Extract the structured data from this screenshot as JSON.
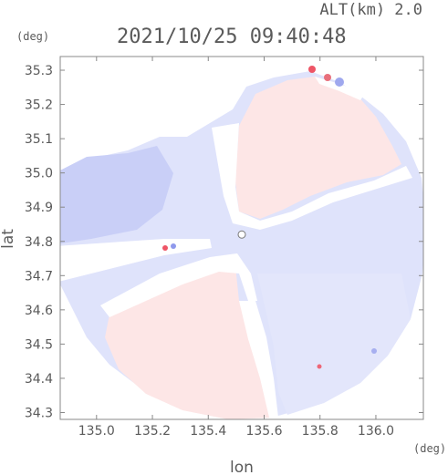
{
  "header": {
    "timestamp": "2021/10/25 09:40:48",
    "altitude_label": "ALT(km) 2.0"
  },
  "chart_data": {
    "type": "heatmap",
    "title": "2021/10/25 09:40:48",
    "subtitle": "ALT(km) 2.0",
    "xlabel": "lon",
    "ylabel": "lat",
    "x_unit": "(deg)",
    "y_unit": "(deg)",
    "xlim": [
      134.87,
      136.17
    ],
    "ylim": [
      34.28,
      35.34
    ],
    "xticks": [
      135.0,
      135.2,
      135.4,
      135.6,
      135.8,
      136.0
    ],
    "xtick_labels": [
      "135.0",
      "135.2",
      "135.4",
      "135.6",
      "135.8",
      "136.0"
    ],
    "yticks": [
      34.3,
      34.4,
      34.5,
      34.6,
      34.7,
      34.8,
      34.9,
      35.0,
      35.1,
      35.2,
      35.3
    ],
    "ytick_labels": [
      "34.3",
      "34.4",
      "34.5",
      "34.6",
      "34.7",
      "34.8",
      "34.9",
      "35.0",
      "35.1",
      "35.2",
      "35.3"
    ],
    "radar_center": {
      "lon": 135.52,
      "lat": 34.82
    },
    "colors": {
      "approaching": "#dfe3fb",
      "approaching_strong": "#b7bef2",
      "receding": "#fde6e6",
      "receding_strong": "#ee5566",
      "frame": "#777777"
    }
  }
}
